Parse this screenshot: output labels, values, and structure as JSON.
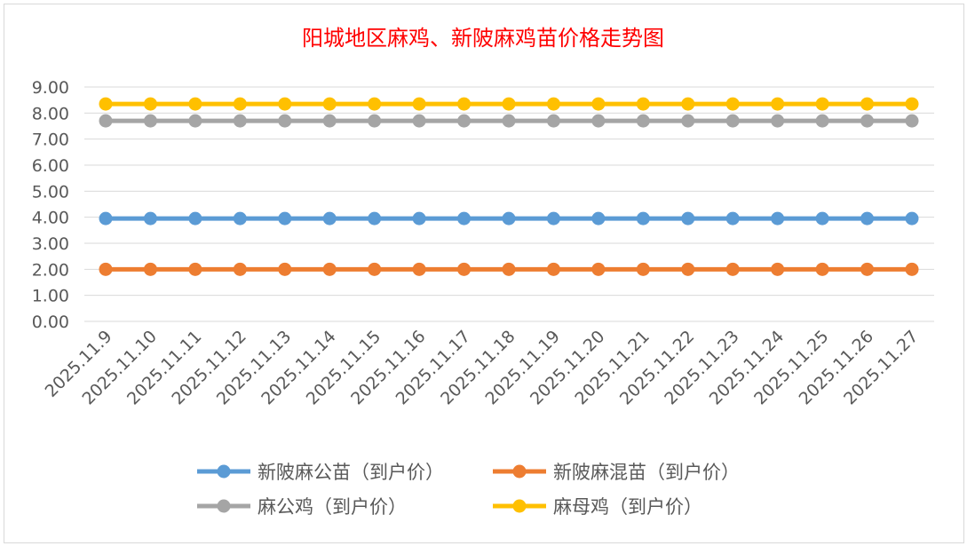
{
  "chart_data": {
    "type": "line",
    "title": "阳城地区麻鸡、新陂麻鸡苗价格走势图",
    "title_color": "#ff0000",
    "categories": [
      "2025.11.9",
      "2025.11.10",
      "2025.11.11",
      "2025.11.12",
      "2025.11.13",
      "2025.11.14",
      "2025.11.15",
      "2025.11.16",
      "2025.11.17",
      "2025.11.18",
      "2025.11.19",
      "2025.11.20",
      "2025.11.21",
      "2025.11.22",
      "2025.11.23",
      "2025.11.24",
      "2025.11.25",
      "2025.11.26",
      "2025.11.27"
    ],
    "yticks": [
      "0.00",
      "1.00",
      "2.00",
      "3.00",
      "4.00",
      "5.00",
      "6.00",
      "7.00",
      "8.00",
      "9.00"
    ],
    "ylim": [
      0,
      9
    ],
    "grid": true,
    "legend_position": "bottom",
    "series": [
      {
        "name": "新陂麻公苗（到户价）",
        "color": "#5b9bd5",
        "values": [
          3.95,
          3.95,
          3.95,
          3.95,
          3.95,
          3.95,
          3.95,
          3.95,
          3.95,
          3.95,
          3.95,
          3.95,
          3.95,
          3.95,
          3.95,
          3.95,
          3.95,
          3.95,
          3.95
        ]
      },
      {
        "name": "新陂麻混苗（到户价）",
        "color": "#ed7d31",
        "values": [
          2.0,
          2.0,
          2.0,
          2.0,
          2.0,
          2.0,
          2.0,
          2.0,
          2.0,
          2.0,
          2.0,
          2.0,
          2.0,
          2.0,
          2.0,
          2.0,
          2.0,
          2.0,
          2.0
        ]
      },
      {
        "name": "麻公鸡（到户价）",
        "color": "#a5a5a5",
        "values": [
          7.7,
          7.7,
          7.7,
          7.7,
          7.7,
          7.7,
          7.7,
          7.7,
          7.7,
          7.7,
          7.7,
          7.7,
          7.7,
          7.7,
          7.7,
          7.7,
          7.7,
          7.7,
          7.7
        ]
      },
      {
        "name": "麻母鸡（到户价）",
        "color": "#ffc000",
        "values": [
          8.35,
          8.35,
          8.35,
          8.35,
          8.35,
          8.35,
          8.35,
          8.35,
          8.35,
          8.35,
          8.35,
          8.35,
          8.35,
          8.35,
          8.35,
          8.35,
          8.35,
          8.35,
          8.35
        ]
      }
    ]
  }
}
